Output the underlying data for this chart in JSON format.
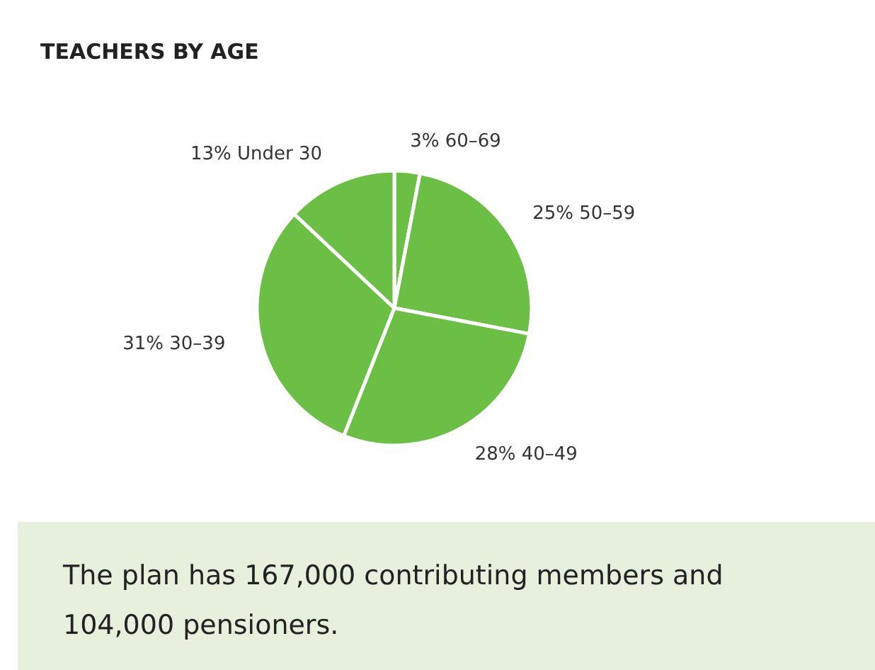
{
  "chart_data": {
    "type": "pie",
    "title": "TEACHERS BY AGE",
    "categories": [
      "60–69",
      "50–59",
      "40–49",
      "30–39",
      "Under 30"
    ],
    "values": [
      3,
      25,
      28,
      31,
      13
    ],
    "value_labels": [
      "3%",
      "25%",
      "28%",
      "31%",
      "13%"
    ],
    "colors": [
      "#6cbf45",
      "#6cbf45",
      "#6cbf45",
      "#6cbf45",
      "#6cbf45"
    ],
    "annotations": [
      "The plan has 167,000 contributing members and\n104,000 pensioners."
    ]
  }
}
